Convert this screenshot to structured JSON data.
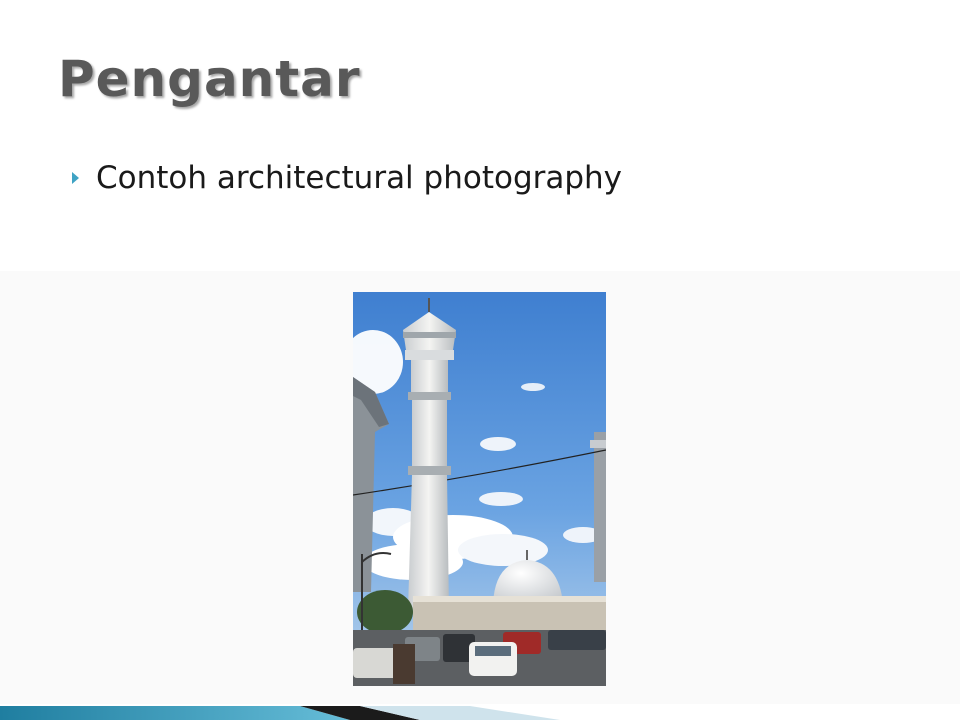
{
  "slide": {
    "title": "Pengantar",
    "bullets": [
      {
        "text": "Contoh architectural photography"
      }
    ]
  },
  "colors": {
    "title": "#595959",
    "bullet": "#3fa3c4",
    "footer_accent": "#2a8fb0"
  },
  "icons": {
    "bullet": "triangle-right-icon"
  }
}
